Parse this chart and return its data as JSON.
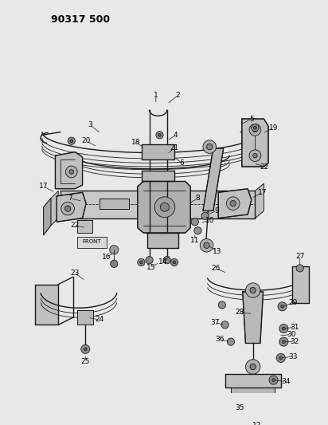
{
  "title": "90317 500",
  "bg_color": "#e8e8e8",
  "line_color": "#1a1a1a",
  "text_color": "#000000",
  "figsize": [
    4.12,
    5.33
  ],
  "dpi": 100
}
